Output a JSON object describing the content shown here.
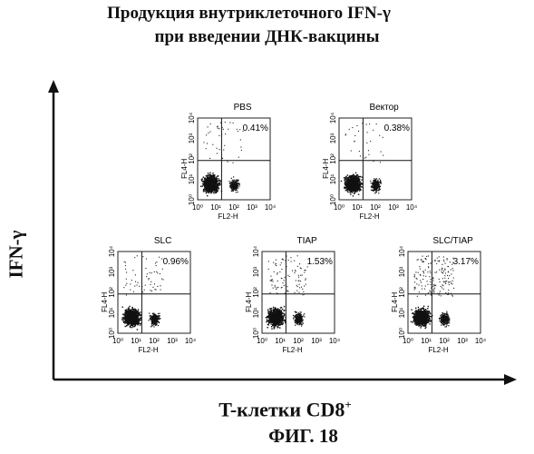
{
  "figure": {
    "title_line1": "Продукция внутриклеточного  IFN-γ",
    "title_line2": "при введении ДНК-вакцины",
    "y_axis_label": "IFN-γ",
    "x_axis_label": "T-клетки CD8",
    "x_axis_label_sup": "+",
    "figure_label": "ФИГ. 18"
  },
  "chart_data": [
    {
      "type": "scatter",
      "title": "PBS",
      "quadrant_percent": "0.41%",
      "xlabel": "FL2-H",
      "ylabel": "FL4-H",
      "x_ticks": [
        "10⁰",
        "10¹",
        "10²",
        "10³",
        "10⁴"
      ],
      "y_ticks": [
        "10⁰",
        "10¹",
        "10²",
        "10³",
        "10⁴"
      ],
      "xlim": [
        1,
        10000
      ],
      "ylim": [
        1,
        10000
      ],
      "log_scale": true
    },
    {
      "type": "scatter",
      "title": "Вектор",
      "quadrant_percent": "0.38%",
      "xlabel": "FL2-H",
      "ylabel": "FL4-H",
      "x_ticks": [
        "10⁰",
        "10¹",
        "10²",
        "10³",
        "10⁴"
      ],
      "y_ticks": [
        "10⁰",
        "10¹",
        "10²",
        "10³",
        "10⁴"
      ],
      "xlim": [
        1,
        10000
      ],
      "ylim": [
        1,
        10000
      ],
      "log_scale": true
    },
    {
      "type": "scatter",
      "title": "SLC",
      "quadrant_percent": "0.96%",
      "xlabel": "FL2-H",
      "ylabel": "FL4-H",
      "x_ticks": [
        "10⁰",
        "10¹",
        "10²",
        "10³",
        "10⁴"
      ],
      "y_ticks": [
        "10⁰",
        "10¹",
        "10²",
        "10³",
        "10⁴"
      ],
      "xlim": [
        1,
        10000
      ],
      "ylim": [
        1,
        10000
      ],
      "log_scale": true
    },
    {
      "type": "scatter",
      "title": "TIAP",
      "quadrant_percent": "1.53%",
      "xlabel": "FL2-H",
      "ylabel": "FL4-H",
      "x_ticks": [
        "10⁰",
        "10¹",
        "10²",
        "10³",
        "10⁴"
      ],
      "y_ticks": [
        "10⁰",
        "10¹",
        "10²",
        "10³",
        "10⁴"
      ],
      "xlim": [
        1,
        10000
      ],
      "ylim": [
        1,
        10000
      ],
      "log_scale": true
    },
    {
      "type": "scatter",
      "title": "SLC/TIAP",
      "quadrant_percent": "3.17%",
      "xlabel": "FL2-H",
      "ylabel": "FL4-H",
      "x_ticks": [
        "10⁰",
        "10¹",
        "10²",
        "10³",
        "10⁴"
      ],
      "y_ticks": [
        "10⁰",
        "10¹",
        "10²",
        "10³",
        "10⁴"
      ],
      "xlim": [
        1,
        10000
      ],
      "ylim": [
        1,
        10000
      ],
      "log_scale": true
    }
  ]
}
